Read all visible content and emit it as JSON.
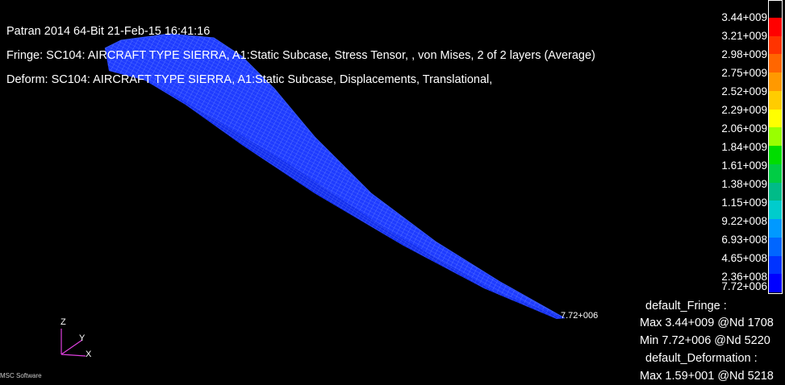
{
  "header": {
    "line1": "Patran 2014 64-Bit 21-Feb-15 16:41:16",
    "line2": "Fringe: SC104: AIRCRAFT TYPE SIERRA, A1:Static Subcase, Stress Tensor, , von Mises, 2 of 2 layers (Average)",
    "line3": "Deform: SC104: AIRCRAFT TYPE SIERRA, A1:Static Subcase, Displacements, Translational,"
  },
  "model": {
    "min_node_label": "7.72+006",
    "element_color": "#1a33ff"
  },
  "legend": {
    "ticks": [
      "3.44+009",
      "3.21+009",
      "2.98+009",
      "2.75+009",
      "2.52+009",
      "2.29+009",
      "2.06+009",
      "1.84+009",
      "1.61+009",
      "1.38+009",
      "1.15+009",
      "9.22+008",
      "6.93+008",
      "4.65+008",
      "2.36+008",
      "7.72+006"
    ],
    "colors": [
      "#ff0000",
      "#ff3300",
      "#ff6600",
      "#ff9900",
      "#ffcc00",
      "#ffff00",
      "#99ff00",
      "#00dd00",
      "#00cc44",
      "#00bb88",
      "#00cccc",
      "#0099ff",
      "#0066ff",
      "#0033ff",
      "#0000ff"
    ]
  },
  "info": {
    "fringe_title": "default_Fringe :",
    "fringe_max": "Max 3.44+009 @Nd 1708",
    "fringe_min": "Min 7.72+006 @Nd 5220",
    "deform_title": "default_Deformation :",
    "deform_max": "Max 1.59+001 @Nd 5218"
  },
  "triad": {
    "z": "Z",
    "y": "Y",
    "x": "X",
    "color": "#e040e0"
  },
  "brand": {
    "text": "MSC Software"
  }
}
